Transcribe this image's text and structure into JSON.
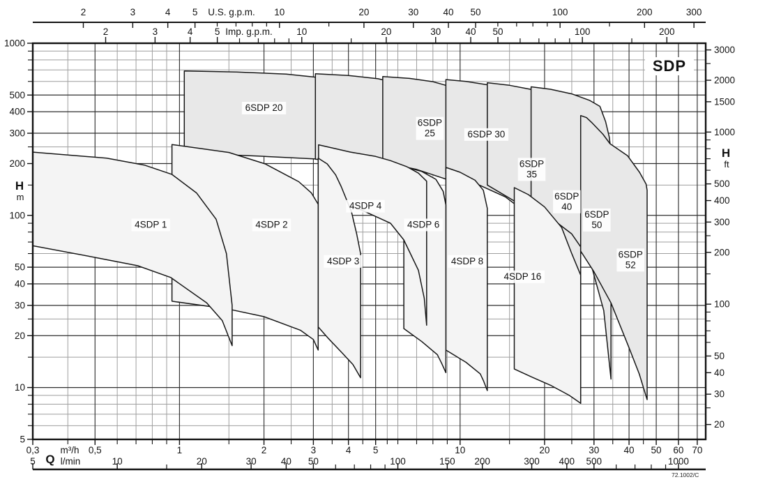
{
  "chart_data": {
    "type": "area",
    "title": "SDP",
    "code": "72.1002/C",
    "layout_hints": {
      "x_scale": "log",
      "y_scale": "log",
      "grid": "on",
      "q_m3h_range": [
        0.3,
        75
      ],
      "h_m_range": [
        5,
        1000
      ]
    },
    "axes": {
      "us_gpm": {
        "label": "U.S. g.p.m.",
        "labeled_ticks": [
          2,
          3,
          4,
          5,
          10,
          20,
          30,
          40,
          50,
          100,
          200,
          300
        ],
        "minor_ticks": [
          6,
          7,
          8,
          9,
          15,
          60,
          70,
          80,
          90,
          150
        ]
      },
      "imp_gpm": {
        "label": "Imp. g.p.m.",
        "labeled_ticks": [
          2,
          3,
          4,
          5,
          10,
          20,
          30,
          40,
          50,
          100,
          200
        ],
        "minor_ticks": [
          6,
          7,
          8,
          9,
          15,
          60,
          70,
          80,
          90,
          150
        ]
      },
      "h_m": {
        "label": "H",
        "unit": "m",
        "labeled_ticks": [
          1000,
          500,
          400,
          300,
          200,
          100,
          50,
          40,
          30,
          20,
          10,
          5
        ],
        "minor_gridlines": [
          900,
          800,
          700,
          600,
          250,
          150,
          90,
          80,
          70,
          60,
          25,
          15,
          9,
          8,
          7,
          6
        ]
      },
      "h_ft": {
        "label": "H",
        "unit": "ft",
        "labeled_ticks": [
          3000,
          2000,
          1500,
          1000,
          500,
          400,
          300,
          200,
          100,
          50,
          40,
          30,
          20
        ],
        "minor_ticks": [
          2500,
          900,
          800,
          700,
          600,
          250,
          150,
          90,
          80,
          70,
          60,
          25
        ]
      },
      "q_m3h": {
        "label": "Q",
        "unit": "m³/h",
        "labeled_ticks": [
          {
            "v": 0.3,
            "t": "0,3"
          },
          {
            "v": 0.5,
            "t": "0,5"
          },
          {
            "v": 1,
            "t": "1"
          },
          {
            "v": 2,
            "t": "2"
          },
          {
            "v": 3,
            "t": "3"
          },
          {
            "v": 4,
            "t": "4"
          },
          {
            "v": 5,
            "t": "5"
          },
          {
            "v": 10,
            "t": "10"
          },
          {
            "v": 20,
            "t": "20"
          },
          {
            "v": 30,
            "t": "30"
          },
          {
            "v": 40,
            "t": "40"
          },
          {
            "v": 50,
            "t": "50"
          },
          {
            "v": 60,
            "t": "60"
          },
          {
            "v": 70,
            "t": "70"
          }
        ],
        "minor_gridlines": [
          0.4,
          0.6,
          0.7,
          0.8,
          0.9,
          1.5,
          2.5,
          3.5,
          4.5,
          5.5,
          6,
          7,
          8,
          9,
          15,
          25,
          35,
          45
        ]
      },
      "q_lmin": {
        "unit": "l/min",
        "labeled_ticks": [
          5,
          10,
          20,
          30,
          40,
          50,
          100,
          150,
          200,
          300,
          400,
          500,
          1000
        ],
        "minor_ticks": [
          15,
          60,
          70,
          80,
          90,
          600,
          700,
          800,
          900
        ]
      }
    },
    "colors": {
      "fill_6sdp": "#e8e8e8",
      "fill_4sdp": "#f4f4f4",
      "stroke_envelope": "#161616",
      "grid_major": "#2f2f2f",
      "grid_minor": "#9e9e9e",
      "axis": "#111111"
    },
    "series": [
      {
        "name": "6SDP 20",
        "family": "6SDP",
        "label_lines": [
          "6SDP 20"
        ],
        "label_pos": [
          2.0,
          420
        ],
        "outline": [
          [
            1.04,
            690
          ],
          [
            1.6,
            680
          ],
          [
            2.4,
            662
          ],
          [
            3.2,
            630
          ],
          [
            3.75,
            585
          ],
          [
            4.05,
            480
          ],
          [
            4.25,
            370
          ],
          [
            4.38,
            290
          ],
          [
            4.45,
            250
          ],
          [
            4.45,
            206
          ],
          [
            3.9,
            209
          ],
          [
            3.0,
            213
          ],
          [
            1.9,
            221
          ],
          [
            1.04,
            230
          ]
        ]
      },
      {
        "name": "6SDP 25",
        "family": "6SDP",
        "label_lines": [
          "6SDP",
          "25"
        ],
        "label_pos": [
          7.8,
          320
        ],
        "outline": [
          [
            3.05,
            665
          ],
          [
            4.0,
            650
          ],
          [
            5.1,
            622
          ],
          [
            6.0,
            585
          ],
          [
            6.6,
            545
          ],
          [
            7.0,
            450
          ],
          [
            7.35,
            330
          ],
          [
            7.5,
            262
          ],
          [
            7.6,
            210
          ],
          [
            7.6,
            158
          ],
          [
            7.0,
            170
          ],
          [
            6.0,
            183
          ],
          [
            4.5,
            198
          ],
          [
            3.05,
            212
          ]
        ]
      },
      {
        "name": "6SDP 30",
        "family": "6SDP",
        "label_lines": [
          "6SDP 30"
        ],
        "label_pos": [
          12.4,
          295
        ],
        "outline": [
          [
            5.3,
            640
          ],
          [
            6.6,
            625
          ],
          [
            8.0,
            598
          ],
          [
            9.3,
            558
          ],
          [
            10.1,
            515
          ],
          [
            10.6,
            420
          ],
          [
            10.95,
            310
          ],
          [
            11.1,
            245
          ],
          [
            11.2,
            215
          ],
          [
            11.2,
            127
          ],
          [
            10.2,
            143
          ],
          [
            8.84,
            163
          ],
          [
            7.0,
            185
          ],
          [
            5.3,
            203
          ]
        ]
      },
      {
        "name": "6SDP 35",
        "family": "6SDP",
        "label_lines": [
          "6SDP",
          "35"
        ],
        "label_pos": [
          18,
          185
        ],
        "outline": [
          [
            8.9,
            615
          ],
          [
            10.5,
            600
          ],
          [
            13,
            568
          ],
          [
            15.5,
            528
          ],
          [
            17.5,
            488
          ],
          [
            19.5,
            390
          ],
          [
            20.6,
            300
          ],
          [
            21.1,
            240
          ],
          [
            21.4,
            205
          ],
          [
            21.4,
            19.6
          ],
          [
            21.2,
            35
          ],
          [
            20.3,
            75
          ],
          [
            18,
            98
          ],
          [
            14.5,
            128
          ],
          [
            11.5,
            152
          ],
          [
            8.9,
            175
          ]
        ]
      },
      {
        "name": "6SDP 40",
        "family": "6SDP",
        "label_lines": [
          "6SDP",
          "40"
        ],
        "label_pos": [
          24,
          120
        ],
        "outline": [
          [
            12.5,
            590
          ],
          [
            15,
            570
          ],
          [
            18,
            538
          ],
          [
            21.5,
            495
          ],
          [
            24,
            450
          ],
          [
            25.6,
            360
          ],
          [
            26.4,
            280
          ],
          [
            26.75,
            230
          ],
          [
            26.9,
            210
          ],
          [
            26.9,
            8.1
          ],
          [
            25.8,
            25
          ],
          [
            23,
            60
          ],
          [
            19,
            97
          ],
          [
            15.5,
            122
          ],
          [
            12.5,
            150
          ]
        ]
      },
      {
        "name": "6SDP 50",
        "family": "6SDP",
        "label_lines": [
          "6SDP",
          "50"
        ],
        "label_pos": [
          30.7,
          94
        ],
        "outline": [
          [
            17.9,
            558
          ],
          [
            21,
            540
          ],
          [
            25,
            508
          ],
          [
            29,
            465
          ],
          [
            31.5,
            430
          ],
          [
            33,
            350
          ],
          [
            34,
            285
          ],
          [
            34.4,
            245
          ],
          [
            34.5,
            215
          ],
          [
            34.5,
            11.2
          ],
          [
            32.5,
            28
          ],
          [
            29,
            55
          ],
          [
            25,
            78
          ],
          [
            21,
            97
          ],
          [
            17.9,
            115
          ]
        ]
      },
      {
        "name": "6SDP 52",
        "family": "6SDP",
        "label_lines": [
          "6SDP",
          "52"
        ],
        "label_pos": [
          40.5,
          55
        ],
        "outline": [
          [
            26.9,
            380
          ],
          [
            28.2,
            370
          ],
          [
            29.4,
            347
          ],
          [
            32.3,
            296
          ],
          [
            34.2,
            261
          ],
          [
            39.5,
            222
          ],
          [
            43.6,
            178
          ],
          [
            46,
            152
          ],
          [
            46.4,
            140
          ],
          [
            46.4,
            8.5
          ],
          [
            43.5,
            12
          ],
          [
            40,
            17
          ],
          [
            34.5,
            31
          ],
          [
            30,
            47
          ],
          [
            26.9,
            62
          ]
        ]
      },
      {
        "name": "4SDP 16",
        "family": "4SDP",
        "label_lines": [
          "4SDP 16"
        ],
        "label_pos": [
          16.7,
          44
        ],
        "outline": [
          [
            15.6,
            145
          ],
          [
            17.5,
            132
          ],
          [
            20,
            112
          ],
          [
            23,
            85
          ],
          [
            25,
            60
          ],
          [
            26.9,
            45
          ],
          [
            26.9,
            8.1
          ],
          [
            24.5,
            9
          ],
          [
            21,
            10.3
          ],
          [
            18,
            11.5
          ],
          [
            15.6,
            12.8
          ]
        ]
      },
      {
        "name": "4SDP 8",
        "family": "4SDP",
        "label_lines": [
          "4SDP 8"
        ],
        "label_pos": [
          10.6,
          54
        ],
        "outline": [
          [
            8.9,
            190
          ],
          [
            10,
            178
          ],
          [
            11.3,
            160
          ],
          [
            12.1,
            140
          ],
          [
            12.5,
            110
          ],
          [
            12.5,
            9.6
          ],
          [
            12.1,
            11
          ],
          [
            11.8,
            12
          ],
          [
            10.5,
            14
          ],
          [
            9.6,
            15.3
          ],
          [
            8.9,
            16.5
          ]
        ]
      },
      {
        "name": "4SDP 6",
        "family": "4SDP",
        "label_lines": [
          "4SDP 6"
        ],
        "label_pos": [
          7.4,
          88
        ],
        "outline": [
          [
            6.3,
            192
          ],
          [
            7.3,
            180
          ],
          [
            8.2,
            162
          ],
          [
            8.7,
            138
          ],
          [
            8.9,
            115
          ],
          [
            8.9,
            12.2
          ],
          [
            8.6,
            13.8
          ],
          [
            8.3,
            15.5
          ],
          [
            7.3,
            18.5
          ],
          [
            6.3,
            22
          ]
        ]
      },
      {
        "name": "4SDP 4",
        "family": "4SDP",
        "label_lines": [
          "4SDP 4"
        ],
        "label_pos": [
          4.6,
          113
        ],
        "outline": [
          [
            3.13,
            257
          ],
          [
            4.07,
            233
          ],
          [
            5.0,
            220
          ],
          [
            5.65,
            208
          ],
          [
            6.45,
            192
          ],
          [
            7.1,
            176
          ],
          [
            7.6,
            158
          ],
          [
            7.6,
            23
          ],
          [
            7.45,
            33
          ],
          [
            7.1,
            48
          ],
          [
            6.3,
            72
          ],
          [
            5.65,
            90
          ],
          [
            4.42,
            108
          ],
          [
            3.13,
            128
          ]
        ]
      },
      {
        "name": "4SDP 3",
        "family": "4SDP",
        "label_lines": [
          "4SDP 3"
        ],
        "label_pos": [
          3.83,
          54
        ],
        "outline": [
          [
            3.12,
            215
          ],
          [
            3.36,
            199
          ],
          [
            3.6,
            172
          ],
          [
            3.77,
            147
          ],
          [
            4.1,
            105
          ],
          [
            4.28,
            78
          ],
          [
            4.42,
            60
          ],
          [
            4.42,
            11.4
          ],
          [
            4.15,
            13.6
          ],
          [
            3.77,
            16.1
          ],
          [
            3.4,
            19.2
          ],
          [
            3.12,
            22.5
          ]
        ]
      },
      {
        "name": "4SDP 2",
        "family": "4SDP",
        "label_lines": [
          "4SDP 2"
        ],
        "label_pos": [
          2.13,
          88
        ],
        "outline": [
          [
            0.94,
            258
          ],
          [
            1.5,
            232
          ],
          [
            2.02,
            199
          ],
          [
            2.66,
            157
          ],
          [
            2.95,
            135
          ],
          [
            3.12,
            116
          ],
          [
            3.12,
            16.5
          ],
          [
            3.0,
            19
          ],
          [
            2.7,
            21.5
          ],
          [
            2.0,
            25.8
          ],
          [
            1.5,
            28.5
          ],
          [
            0.94,
            31.7
          ]
        ]
      },
      {
        "name": "4SDP 1",
        "family": "4SDP",
        "label_lines": [
          "4SDP 1"
        ],
        "label_pos": [
          0.79,
          88
        ],
        "outline": [
          [
            0.3,
            233
          ],
          [
            0.55,
            215
          ],
          [
            0.75,
            196
          ],
          [
            0.94,
            173
          ],
          [
            1.15,
            135
          ],
          [
            1.35,
            95
          ],
          [
            1.47,
            60
          ],
          [
            1.54,
            30
          ],
          [
            1.54,
            17.5
          ],
          [
            1.42,
            24.5
          ],
          [
            1.25,
            31
          ],
          [
            0.93,
            43.6
          ],
          [
            0.71,
            51
          ],
          [
            0.5,
            57
          ],
          [
            0.3,
            66.6
          ]
        ]
      }
    ]
  }
}
